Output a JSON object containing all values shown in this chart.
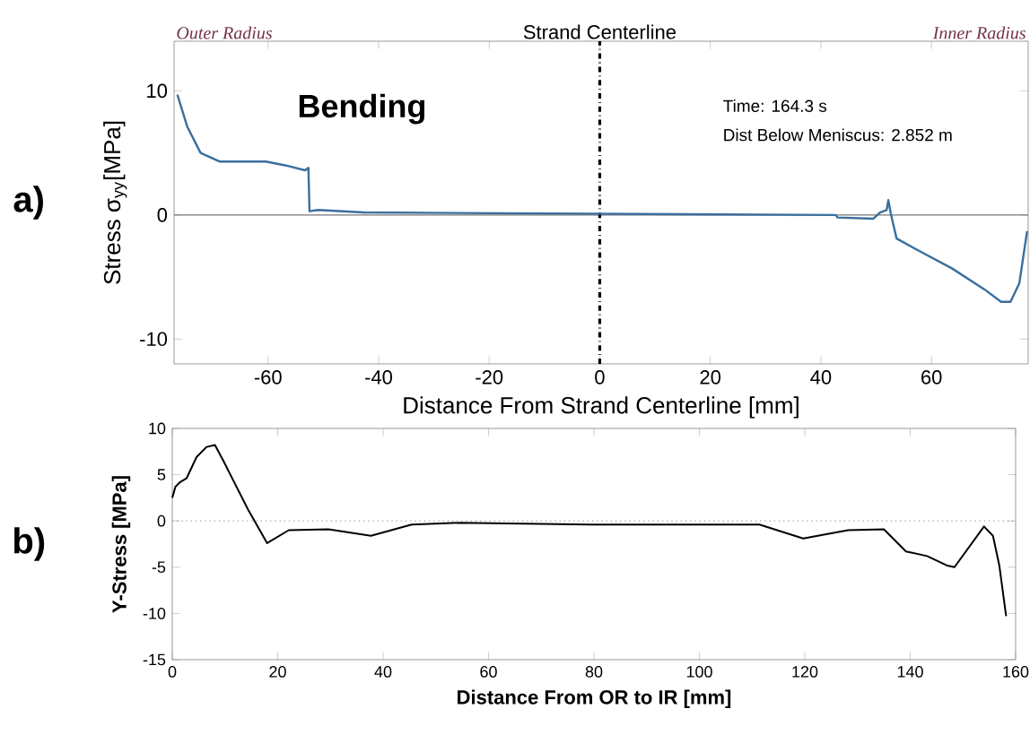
{
  "chart_data": [
    {
      "type": "line",
      "xlabel": "Distance From Strand Centerline [mm]",
      "ylabel": "Stress σ$_{yy}$[MPa]",
      "annotations": [
        "a)",
        "Outer Radius",
        "Inner Radius",
        "Bending",
        "Time: 164.3 s",
        "Dist Below Meniscus: 2.852 m"
      ],
      "x": [
        -76.4,
        -74.6,
        -72.2,
        -68.7,
        -60.4,
        -56.9,
        -53.3,
        -52.7,
        -52.5,
        -50.9,
        -42.7,
        42.7,
        43,
        49.5,
        50.7,
        51.9,
        52.2,
        52.7,
        53.7,
        57.8,
        63.7,
        69.6,
        72.6,
        74.3,
        75.9,
        77.3
      ],
      "series": [
        {
          "color": "#3a6f9e",
          "values": [
            9.7,
            7.1,
            5.0,
            4.3,
            4.3,
            4.0,
            3.6,
            3.8,
            0.3,
            0.4,
            0.2,
            0,
            -0.2,
            -0.3,
            0.2,
            0.4,
            1.2,
            0,
            -1.9,
            -2.9,
            -4.3,
            -6.0,
            -7.0,
            -7.0,
            -5.5,
            -1.3
          ]
        }
      ],
      "xlim": [
        -77,
        77.5
      ],
      "ylim": [
        -12,
        14
      ],
      "xticks": [
        -60,
        -40,
        -20,
        0,
        20,
        40,
        60
      ],
      "yticks": [
        -10,
        0,
        10
      ],
      "ref_lines": [
        {
          "axis": "y",
          "value": 0,
          "color": "#777777",
          "line_style": "solid"
        },
        {
          "axis": "x",
          "value": 0,
          "label": "Strand Centerline",
          "color": "#000000",
          "line_style": "dashdot"
        }
      ],
      "grid": false,
      "marker": "none",
      "line_style": "solid"
    },
    {
      "type": "line",
      "xlabel": "Distance From OR to IR [mm]",
      "ylabel": "Y-Stress [MPa]",
      "annotations": [
        "b)"
      ],
      "x": [
        0,
        0.6,
        1.5,
        2.7,
        4.6,
        6.5,
        8.1,
        9.6,
        14.4,
        18,
        22.1,
        29.6,
        37.7,
        45.4,
        54.6,
        79.5,
        92,
        111.4,
        119.7,
        128.2,
        135,
        139.2,
        143.2,
        146.9,
        148.4,
        154,
        155.7,
        156.9,
        158.2
      ],
      "series": [
        {
          "color": "#000000",
          "values": [
            2.5,
            3.7,
            4.2,
            4.6,
            6.9,
            8.0,
            8.2,
            6.6,
            1.2,
            -2.4,
            -1.0,
            -0.9,
            -1.6,
            -0.4,
            -0.2,
            -0.4,
            -0.4,
            -0.4,
            -1.9,
            -1.0,
            -0.9,
            -3.3,
            -3.8,
            -4.8,
            -5.0,
            -0.6,
            -1.6,
            -4.8,
            -10.3
          ]
        }
      ],
      "xlim": [
        0,
        160
      ],
      "ylim": [
        -15,
        10
      ],
      "xticks": [
        0,
        20,
        40,
        60,
        80,
        100,
        120,
        140,
        160
      ],
      "yticks": [
        -15,
        -10,
        -5,
        0,
        5,
        10
      ],
      "ref_lines": [
        {
          "axis": "y",
          "value": 0,
          "color": "#999999",
          "line_style": "dotted"
        }
      ],
      "grid": false,
      "marker": "none",
      "line_style": "solid"
    }
  ]
}
